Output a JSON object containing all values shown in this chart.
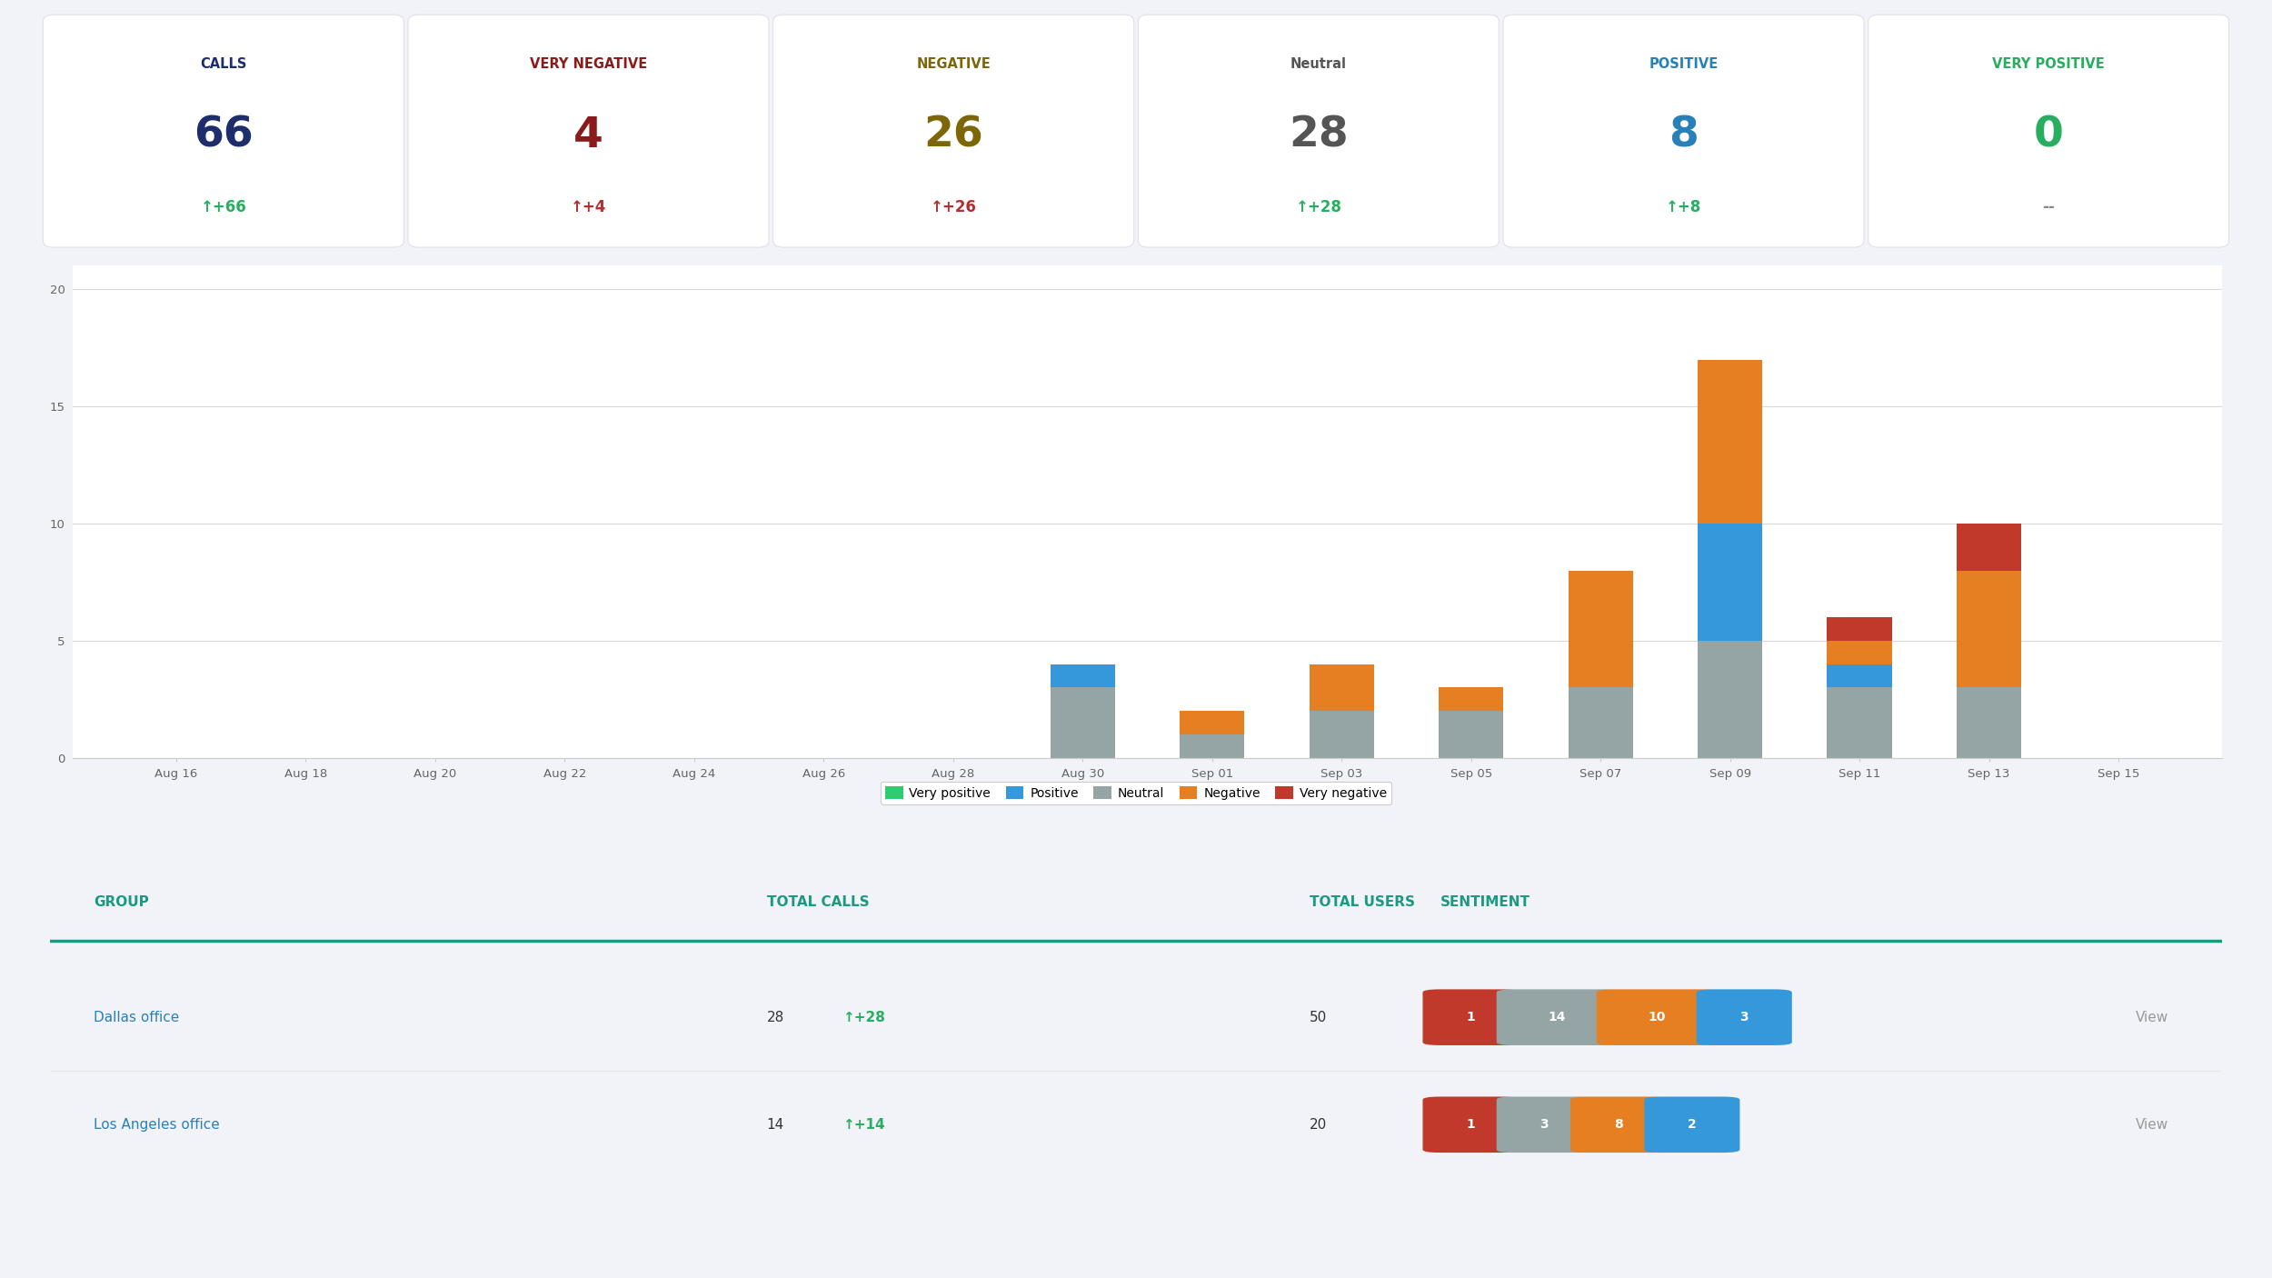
{
  "bg_color": "#f2f3f8",
  "card_bg": "#ffffff",
  "cards": [
    {
      "label": "CALLS",
      "label_color": "#1e2d6b",
      "value": "66",
      "value_color": "#1e2d6b",
      "change": "↑+66",
      "change_color": "#27ae60"
    },
    {
      "label": "VERY NEGATIVE",
      "label_color": "#8b1a1a",
      "value": "4",
      "value_color": "#8b1a1a",
      "change": "↑+4",
      "change_color": "#b03030"
    },
    {
      "label": "NEGATIVE",
      "label_color": "#7d6608",
      "value": "26",
      "value_color": "#7d6608",
      "change": "↑+26",
      "change_color": "#b03030"
    },
    {
      "label": "Neutral",
      "label_color": "#555555",
      "value": "28",
      "value_color": "#555555",
      "change": "↑+28",
      "change_color": "#27ae60"
    },
    {
      "label": "POSITIVE",
      "label_color": "#2980b9",
      "value": "8",
      "value_color": "#2980b9",
      "change": "↑+8",
      "change_color": "#27ae60"
    },
    {
      "label": "VERY POSITIVE",
      "label_color": "#27ae60",
      "value": "0",
      "value_color": "#27ae60",
      "change": "--",
      "change_color": "#888888"
    }
  ],
  "chart": {
    "dates": [
      "Aug 16",
      "Aug 18",
      "Aug 20",
      "Aug 22",
      "Aug 24",
      "Aug 26",
      "Aug 28",
      "Aug 30",
      "Sep 01",
      "Sep 03",
      "Sep 05",
      "Sep 07",
      "Sep 09",
      "Sep 11",
      "Sep 13",
      "Sep 15"
    ],
    "very_positive": [
      0,
      0,
      0,
      0,
      0,
      0,
      0,
      0,
      0,
      0,
      0,
      0,
      0,
      0,
      0,
      0
    ],
    "positive": [
      0,
      0,
      0,
      0,
      0,
      0,
      0,
      1,
      0,
      0,
      0,
      0,
      5,
      1,
      0,
      0
    ],
    "neutral": [
      0,
      0,
      0,
      0,
      0,
      0,
      0,
      3,
      1,
      2,
      2,
      3,
      5,
      3,
      3,
      0
    ],
    "negative": [
      0,
      0,
      0,
      0,
      0,
      0,
      0,
      0,
      1,
      2,
      1,
      5,
      7,
      1,
      5,
      0
    ],
    "very_negative": [
      0,
      0,
      0,
      0,
      0,
      0,
      0,
      0,
      0,
      0,
      0,
      0,
      0,
      1,
      2,
      0
    ],
    "colors": {
      "very_positive": "#2ecc71",
      "positive": "#3498db",
      "neutral": "#95a5a6",
      "negative": "#e67e22",
      "very_negative": "#c0392b"
    },
    "yticks": [
      0,
      5,
      10,
      15,
      20
    ],
    "ylim": [
      0,
      21
    ]
  },
  "legend": [
    {
      "label": "Very positive",
      "color": "#2ecc71"
    },
    {
      "label": "Positive",
      "color": "#3498db"
    },
    {
      "label": "Neutral",
      "color": "#95a5a6"
    },
    {
      "label": "Negative",
      "color": "#e67e22"
    },
    {
      "label": "Very negative",
      "color": "#c0392b"
    }
  ],
  "table": {
    "header_color": "#1a9a80",
    "rows": [
      {
        "group": "Dallas office",
        "group_color": "#2980b9",
        "total_calls": "28",
        "calls_change": "↑+28",
        "calls_change_color": "#27ae60",
        "total_users": "50",
        "sentiment_badges": [
          {
            "value": "1",
            "color": "#c0392b"
          },
          {
            "value": "14",
            "color": "#95a5a6"
          },
          {
            "value": "10",
            "color": "#e67e22"
          },
          {
            "value": "3",
            "color": "#3498db"
          }
        ],
        "view": "View"
      },
      {
        "group": "Los Angeles office",
        "group_color": "#2980b9",
        "total_calls": "14",
        "calls_change": "↑+14",
        "calls_change_color": "#27ae60",
        "total_users": "20",
        "sentiment_badges": [
          {
            "value": "1",
            "color": "#c0392b"
          },
          {
            "value": "3",
            "color": "#95a5a6"
          },
          {
            "value": "8",
            "color": "#e67e22"
          },
          {
            "value": "2",
            "color": "#3498db"
          }
        ],
        "view": "View"
      }
    ]
  }
}
